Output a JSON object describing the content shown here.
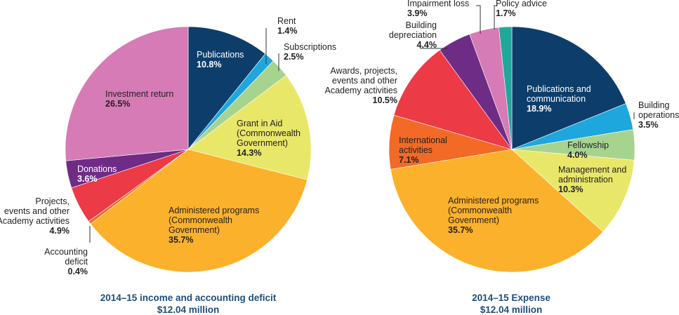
{
  "chart_data": [
    {
      "type": "pie",
      "title": "2014–15 income and accounting deficit",
      "subtitle": "$12.04 million",
      "slices": [
        {
          "name": "Publications",
          "value": 10.8,
          "value_label": "10.8%",
          "color": "#0d3e6b"
        },
        {
          "name": "Rent",
          "value": 1.4,
          "value_label": "1.4%",
          "color": "#1ea7dd"
        },
        {
          "name": "Subscriptions",
          "value": 2.5,
          "value_label": "2.5%",
          "color": "#a6d48f"
        },
        {
          "name": "Grant in Aid (Commonwealth Government)",
          "value": 14.3,
          "value_label": "14.3%",
          "color": "#e9e76a"
        },
        {
          "name": "Administered programs (Commonwealth Government)",
          "value": 35.7,
          "value_label": "35.7%",
          "color": "#fbb12b"
        },
        {
          "name": "Accounting deficit",
          "value": 0.4,
          "value_label": "0.4%",
          "color": "#f26a25"
        },
        {
          "name": "Projects, events and other Academy activities",
          "value": 4.9,
          "value_label": "4.9%",
          "color": "#ec3a46"
        },
        {
          "name": "Donations",
          "value": 3.6,
          "value_label": "3.6%",
          "color": "#6f2c86"
        },
        {
          "name": "Investment return",
          "value": 26.5,
          "value_label": "26.5%",
          "color": "#d67bb6"
        }
      ]
    },
    {
      "type": "pie",
      "title": "2014–15 Expense",
      "subtitle": "$12.04 million",
      "slices": [
        {
          "name": "Publications and communication",
          "value": 18.9,
          "value_label": "18.9%",
          "color": "#0d3e6b"
        },
        {
          "name": "Building operations",
          "value": 3.5,
          "value_label": "3.5%",
          "color": "#1ea7dd"
        },
        {
          "name": "Fellowship",
          "value": 4.0,
          "value_label": "4.0%",
          "color": "#a6d48f"
        },
        {
          "name": "Management and administration",
          "value": 10.3,
          "value_label": "10.3%",
          "color": "#e9e76a"
        },
        {
          "name": "Administered programs (Commonwealth Government)",
          "value": 35.7,
          "value_label": "35.7%",
          "color": "#fbb12b"
        },
        {
          "name": "International activities",
          "value": 7.1,
          "value_label": "7.1%",
          "color": "#f26a25"
        },
        {
          "name": "Awards, projects, events and other Academy activities",
          "value": 10.5,
          "value_label": "10.5%",
          "color": "#ec3a46"
        },
        {
          "name": "Building depreciation",
          "value": 4.4,
          "value_label": "4.4%",
          "color": "#6f2c86"
        },
        {
          "name": "Impairment loss",
          "value": 3.9,
          "value_label": "3.9%",
          "color": "#d67bb6"
        },
        {
          "name": "Policy advice",
          "value": 1.7,
          "value_label": "1.7%",
          "color": "#1fa89a"
        }
      ]
    }
  ]
}
